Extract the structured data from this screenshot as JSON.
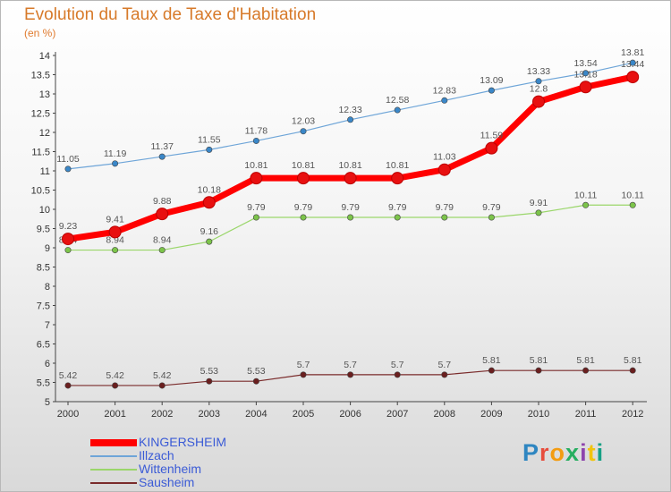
{
  "header": {
    "title": "Evolution du Taux de Taxe d'Habitation",
    "unit": "(en %)"
  },
  "logo": {
    "text": "Proxiti",
    "colors": [
      "#2e86c1",
      "#e74c3c",
      "#f39c12",
      "#27ae60",
      "#8e44ad",
      "#f1c40f",
      "#16a085"
    ]
  },
  "chart_data": {
    "type": "line",
    "title": "Evolution du Taux de Taxe d'Habitation",
    "ylabel": "(en %)",
    "xlabel": "",
    "x": [
      2000,
      2001,
      2002,
      2003,
      2004,
      2005,
      2006,
      2007,
      2008,
      2009,
      2010,
      2011,
      2012
    ],
    "ylim": [
      5,
      14
    ],
    "yticks": [
      5,
      5.5,
      6,
      6.5,
      7,
      7.5,
      8,
      8.5,
      9,
      9.5,
      10,
      10.5,
      11,
      11.5,
      12,
      12.5,
      13,
      13.5,
      14
    ],
    "grid": false,
    "legend": "bottom-left",
    "series": [
      {
        "name": "KINGERSHEIM",
        "color": "#ff0000",
        "width": 7,
        "marker": "#e81010",
        "values": [
          9.23,
          9.41,
          9.88,
          10.18,
          10.81,
          10.81,
          10.81,
          10.81,
          11.03,
          11.59,
          12.8,
          13.18,
          13.44
        ],
        "labels": [
          "9.23",
          "9.41",
          "9.88",
          "10.18",
          "10.81",
          "10.81",
          "10.81",
          "10.81",
          "11.03",
          "11.59",
          "12.8",
          "13.18",
          "13.44"
        ]
      },
      {
        "name": "Illzach",
        "color": "#6ea5d8",
        "width": 1.2,
        "marker": "#3a87c8",
        "values": [
          11.05,
          11.19,
          11.37,
          11.55,
          11.78,
          12.03,
          12.33,
          12.58,
          12.83,
          13.09,
          13.33,
          13.54,
          13.81
        ],
        "labels": [
          "11.05",
          "11.19",
          "11.37",
          "11.55",
          "11.78",
          "12.03",
          "12.33",
          "12.58",
          "12.83",
          "13.09",
          "13.33",
          "13.54",
          "13.81"
        ]
      },
      {
        "name": "Wittenheim",
        "color": "#9ad66a",
        "width": 1.2,
        "marker": "#7cc44a",
        "values": [
          8.94,
          8.94,
          8.94,
          9.16,
          9.79,
          9.79,
          9.79,
          9.79,
          9.79,
          9.79,
          9.91,
          10.11,
          10.11
        ],
        "labels": [
          "8.94",
          "8.94",
          "8.94",
          "9.16",
          "9.79",
          "9.79",
          "9.79",
          "9.79",
          "9.79",
          "9.79",
          "9.91",
          "10.11",
          "10.11"
        ]
      },
      {
        "name": "Sausheim",
        "color": "#7a2b2b",
        "width": 1.2,
        "marker": "#6a1f1f",
        "values": [
          5.42,
          5.42,
          5.42,
          5.53,
          5.53,
          5.7,
          5.7,
          5.7,
          5.7,
          5.81,
          5.81,
          5.81,
          5.81
        ],
        "labels": [
          "5.42",
          "5.42",
          "5.42",
          "5.53",
          "5.53",
          "5.7",
          "5.7",
          "5.7",
          "5.7",
          "5.81",
          "5.81",
          "5.81",
          "5.81"
        ]
      }
    ]
  }
}
